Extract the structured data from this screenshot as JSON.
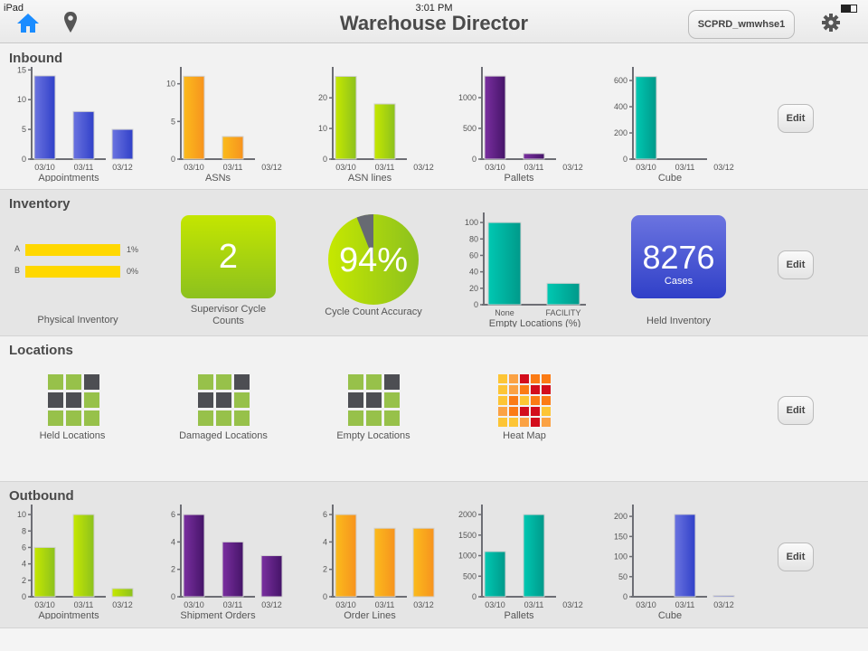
{
  "status_bar": {
    "carrier": "iPad",
    "time": "3:01 PM"
  },
  "header": {
    "title": "Warehouse Director",
    "environment": "SCPRD_wmwhse1",
    "icons": [
      "home-icon",
      "location-pin-icon",
      "gear-icon"
    ],
    "accent": "#1a8cff"
  },
  "edit_label": "Edit",
  "inbound": {
    "title": "Inbound",
    "charts": [
      {
        "type": "bar",
        "title": "Appointments",
        "categories": [
          "03/10",
          "03/11",
          "03/12"
        ],
        "values": [
          14,
          8,
          5
        ],
        "ticks": [
          0,
          5,
          10,
          15
        ],
        "ymax": 15.2,
        "color": [
          "#6b74e0",
          "#3040c8"
        ]
      },
      {
        "type": "bar",
        "title": "ASNs",
        "categories": [
          "03/10",
          "03/11",
          "03/12"
        ],
        "values": [
          11,
          3,
          0
        ],
        "ticks": [
          0,
          5,
          10
        ],
        "ymax": 12,
        "color": [
          "#fbbb1c",
          "#f7931e"
        ]
      },
      {
        "type": "bar",
        "title": "ASN lines",
        "categories": [
          "03/10",
          "03/11",
          "03/12"
        ],
        "values": [
          27,
          18,
          0
        ],
        "ticks": [
          0,
          10,
          20
        ],
        "ymax": 29.5,
        "color": [
          "#c6e800",
          "#8cc11e"
        ]
      },
      {
        "type": "bar",
        "title": "Pallets",
        "categories": [
          "03/10",
          "03/11",
          "03/12"
        ],
        "values": [
          1350,
          90,
          0
        ],
        "ticks": [
          0,
          500,
          1000
        ],
        "ymax": 1470,
        "color": [
          "#7a2fa0",
          "#451468"
        ]
      },
      {
        "type": "bar",
        "title": "Cube",
        "categories": [
          "03/10",
          "03/11",
          "03/12"
        ],
        "values": [
          630,
          0,
          0
        ],
        "ticks": [
          0,
          200,
          400,
          600
        ],
        "ymax": 690,
        "color": [
          "#00c8b2",
          "#00998a"
        ]
      }
    ]
  },
  "inventory": {
    "title": "Inventory",
    "physical": {
      "title": "Physical Inventory",
      "rows": [
        {
          "label": "A",
          "value": "1%"
        },
        {
          "label": "B",
          "value": "0%"
        }
      ],
      "color": "#ffd800"
    },
    "supervisor": {
      "value": "2",
      "title_line1": "Supervisor Cycle",
      "title_line2": "Counts"
    },
    "accuracy": {
      "value": "94%",
      "fraction": 0.94,
      "title": "Cycle Count Accuracy"
    },
    "empty_locations": {
      "type": "bar",
      "title": "Empty Locations (%)",
      "categories": [
        "None",
        "FACILITY"
      ],
      "values": [
        100,
        26
      ],
      "ticks": [
        0,
        20,
        40,
        60,
        80,
        100
      ],
      "ymax": 110,
      "color": [
        "#00c8b2",
        "#00998a"
      ]
    },
    "held": {
      "value": "8276",
      "unit": "Cases",
      "title": "Held Inventory"
    }
  },
  "locations": {
    "title": "Locations",
    "items": [
      {
        "title": "Held Locations"
      },
      {
        "title": "Damaged Locations"
      },
      {
        "title": "Empty Locations"
      },
      {
        "title": "Heat Map"
      }
    ],
    "location_pattern": [
      "g",
      "g",
      "d",
      "d",
      "d",
      "g",
      "g",
      "g",
      "g"
    ],
    "heat_pattern": [
      "y",
      "l",
      "r",
      "o",
      "o",
      "y",
      "l",
      "o",
      "r",
      "r",
      "y",
      "o",
      "y",
      "o",
      "o",
      "l",
      "o",
      "r",
      "r",
      "y",
      "y",
      "y",
      "l",
      "r",
      "l"
    ]
  },
  "outbound": {
    "title": "Outbound",
    "charts": [
      {
        "type": "bar",
        "title": "Appointments",
        "categories": [
          "03/10",
          "03/11",
          "03/12"
        ],
        "values": [
          6,
          10,
          1
        ],
        "ticks": [
          0,
          2,
          4,
          6,
          8,
          10
        ],
        "ymax": 11,
        "color": [
          "#c6e800",
          "#8cc11e"
        ]
      },
      {
        "type": "bar",
        "title": "Shipment Orders",
        "categories": [
          "03/10",
          "03/11",
          "03/12"
        ],
        "values": [
          6,
          4,
          3
        ],
        "ticks": [
          0,
          2,
          4,
          6
        ],
        "ymax": 6.6,
        "color": [
          "#7a2fa0",
          "#451468"
        ]
      },
      {
        "type": "bar",
        "title": "Order Lines",
        "categories": [
          "03/10",
          "03/11",
          "03/12"
        ],
        "values": [
          6,
          5,
          5
        ],
        "ticks": [
          0,
          2,
          4,
          6
        ],
        "ymax": 6.6,
        "color": [
          "#fbbb1c",
          "#f7931e"
        ]
      },
      {
        "type": "bar",
        "title": "Pallets",
        "categories": [
          "03/10",
          "03/11",
          "03/12"
        ],
        "values": [
          1100,
          2000,
          0
        ],
        "ticks": [
          0,
          500,
          1000,
          1500,
          2000
        ],
        "ymax": 2200,
        "color": [
          "#00c8b2",
          "#00998a"
        ]
      },
      {
        "type": "bar",
        "title": "Cube",
        "categories": [
          "03/10",
          "03/11",
          "03/12"
        ],
        "values": [
          0,
          205,
          3
        ],
        "ticks": [
          0,
          50,
          100,
          150,
          200
        ],
        "ymax": 225,
        "color": [
          "#6b74e0",
          "#3040c8"
        ]
      }
    ]
  }
}
